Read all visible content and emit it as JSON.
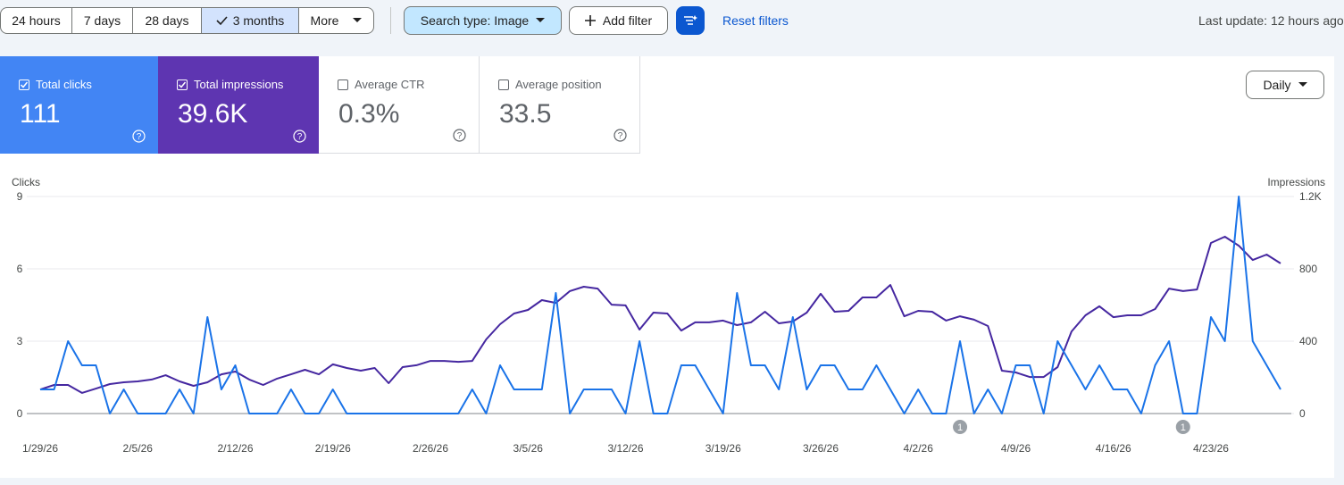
{
  "toolbar": {
    "ranges": [
      "24 hours",
      "7 days",
      "28 days",
      "3 months"
    ],
    "selected": 3,
    "more": "More",
    "search_type": "Search type: Image",
    "add_filter": "Add filter",
    "reset": "Reset filters",
    "last_update": "Last update: 12 hours ago"
  },
  "metrics": [
    {
      "label": "Total clicks",
      "value": "111",
      "checked": true,
      "color": "#4285f4"
    },
    {
      "label": "Total impressions",
      "value": "39.6K",
      "checked": true,
      "color": "#5e35b1"
    },
    {
      "label": "Average CTR",
      "value": "0.3%",
      "checked": false
    },
    {
      "label": "Average position",
      "value": "33.5",
      "checked": false
    }
  ],
  "granularity": "Daily",
  "chart_data": {
    "type": "line",
    "categories": [
      "1/29/26",
      null,
      null,
      null,
      null,
      null,
      null,
      "2/5/26",
      null,
      null,
      null,
      null,
      null,
      null,
      "2/12/26",
      null,
      null,
      null,
      null,
      null,
      null,
      "2/19/26",
      null,
      null,
      null,
      null,
      null,
      null,
      "2/26/26",
      null,
      null,
      null,
      null,
      null,
      null,
      "3/5/26",
      null,
      null,
      null,
      null,
      null,
      null,
      "3/12/26",
      null,
      null,
      null,
      null,
      null,
      null,
      "3/19/26",
      null,
      null,
      null,
      null,
      null,
      null,
      "3/26/26",
      null,
      null,
      null,
      null,
      null,
      null,
      "4/2/26",
      null,
      null,
      null,
      null,
      null,
      null,
      "4/9/26",
      null,
      null,
      null,
      null,
      null,
      null,
      "4/16/26",
      null,
      null,
      null,
      null,
      null,
      null,
      "4/23/26",
      null,
      null,
      null,
      null,
      null
    ],
    "series": [
      {
        "name": "Clicks",
        "color": "#1a73e8",
        "values": [
          1,
          1,
          3,
          2,
          2,
          0,
          1,
          0,
          0,
          0,
          1,
          0,
          4,
          1,
          2,
          0,
          0,
          0,
          1,
          0,
          0,
          1,
          0,
          0,
          0,
          0,
          0,
          0,
          0,
          0,
          0,
          1,
          0,
          2,
          1,
          1,
          1,
          5,
          0,
          1,
          1,
          1,
          0,
          3,
          0,
          0,
          2,
          2,
          1,
          0,
          5,
          2,
          2,
          1,
          4,
          1,
          2,
          2,
          1,
          1,
          2,
          1,
          0,
          1,
          0,
          0,
          3,
          0,
          1,
          0,
          2,
          2,
          0,
          3,
          2,
          1,
          2,
          1,
          1,
          0,
          2,
          3,
          0,
          0,
          4,
          3,
          9,
          3,
          2,
          1
        ]
      },
      {
        "name": "Impressions",
        "color": "#4527a0",
        "axis": "y2",
        "values": [
          133,
          158,
          158,
          114,
          138,
          163,
          173,
          178,
          188,
          212,
          178,
          153,
          173,
          217,
          232,
          188,
          158,
          193,
          217,
          242,
          217,
          272,
          252,
          237,
          252,
          168,
          257,
          267,
          291,
          291,
          286,
          291,
          410,
          494,
          553,
          573,
          627,
          612,
          677,
          701,
          691,
          602,
          598,
          464,
          558,
          553,
          459,
          504,
          504,
          514,
          489,
          504,
          563,
          499,
          509,
          558,
          662,
          563,
          568,
          642,
          642,
          711,
          538,
          568,
          563,
          514,
          538,
          519,
          484,
          237,
          227,
          202,
          202,
          257,
          454,
          543,
          593,
          533,
          543,
          543,
          578,
          691,
          677,
          686,
          943,
          978,
          928,
          849,
          879,
          830
        ]
      }
    ],
    "ylim": [
      0,
      9
    ],
    "yticks": [
      0,
      3,
      6,
      9
    ],
    "y2lim": [
      0,
      1200
    ],
    "y2ticks": [
      0,
      400,
      800,
      {
        "value": 1200,
        "label": "1.2K"
      }
    ],
    "grid": true,
    "annotations": [
      {
        "index": 66,
        "label": "1"
      },
      {
        "index": 82,
        "label": "1"
      }
    ]
  }
}
